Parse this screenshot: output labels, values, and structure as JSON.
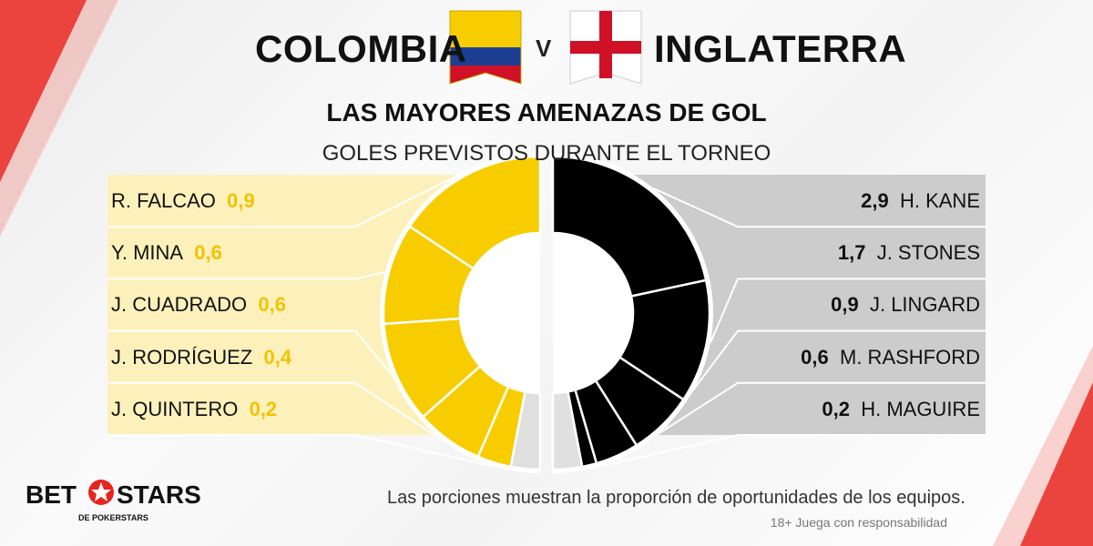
{
  "header": {
    "team_left": "COLOMBIA",
    "team_right": "INGLATERRA",
    "vs": "V",
    "subtitle": "LAS MAYORES AMENAZAS DE GOL",
    "subsubtitle": "GOLES PREVISTOS DURANTE EL TORNEO"
  },
  "chart_data": {
    "type": "pie",
    "subtitle": "LAS MAYORES AMENAZAS DE GOL",
    "caption": "GOLES PREVISTOS DURANTE EL TORNEO",
    "series": [
      {
        "name": "COLOMBIA",
        "color": "#f7cd00",
        "players": [
          {
            "name": "R. FALCAO",
            "value": 0.9,
            "display": "0,9"
          },
          {
            "name": "Y. MINA",
            "value": 0.6,
            "display": "0,6"
          },
          {
            "name": "J. CUADRADO",
            "value": 0.6,
            "display": "0,6"
          },
          {
            "name": "J. RODRÍGUEZ",
            "value": 0.4,
            "display": "0,4"
          },
          {
            "name": "J. QUINTERO",
            "value": 0.2,
            "display": "0,2"
          }
        ]
      },
      {
        "name": "INGLATERRA",
        "color": "#000000",
        "players": [
          {
            "name": "H. KANE",
            "value": 2.9,
            "display": "2,9"
          },
          {
            "name": "J. STONES",
            "value": 1.7,
            "display": "1,7"
          },
          {
            "name": "J. LINGARD",
            "value": 0.9,
            "display": "0,9"
          },
          {
            "name": "M. RASHFORD",
            "value": 0.6,
            "display": "0,6"
          },
          {
            "name": "H. MAGUIRE",
            "value": 0.2,
            "display": "0,2"
          }
        ]
      }
    ],
    "other_color": "#e0e0e0",
    "label_band_colors": {
      "left": "#fdf1bb",
      "right": "#cccccc"
    }
  },
  "footer": {
    "note": "Las porciones muestran la proporción de oportunidades de los equipos.",
    "disclaimer": "18+ Juega con responsabilidad",
    "logo_bet": "BET",
    "logo_stars": "STARS",
    "logo_sub": "DE POKERSTARS"
  },
  "colors": {
    "accent_red": "#e8241e",
    "flag_yellow": "#f7cd00",
    "flag_blue": "#1c3f94",
    "flag_red": "#ce1126"
  }
}
